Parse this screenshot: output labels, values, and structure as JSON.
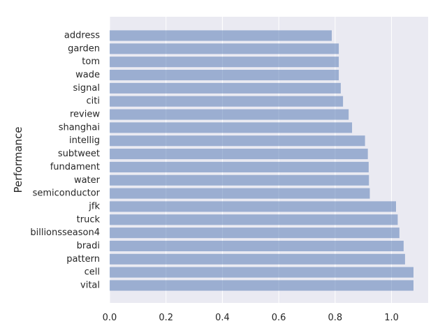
{
  "chart_data": {
    "type": "bar",
    "orientation": "horizontal",
    "categories": [
      "address",
      "garden",
      "tom",
      "wade",
      "signal",
      "citi",
      "review",
      "shanghai",
      "intellig",
      "subtweet",
      "fundament",
      "water",
      "semiconductor",
      "jfk",
      "truck",
      "billionsseason4",
      "bradi",
      "pattern",
      "cell",
      "vital"
    ],
    "values": [
      0.788,
      0.813,
      0.813,
      0.813,
      0.82,
      0.828,
      0.848,
      0.86,
      0.906,
      0.916,
      0.919,
      0.92,
      0.923,
      1.016,
      1.022,
      1.028,
      1.043,
      1.048,
      1.078,
      1.078
    ],
    "ylabel": "Performance",
    "xlabel": "",
    "xlim": [
      0,
      1.13
    ],
    "xticks": [
      0.0,
      0.2,
      0.4,
      0.6,
      0.8,
      1.0
    ],
    "xtick_labels": [
      "0.0",
      "0.2",
      "0.4",
      "0.6",
      "0.8",
      "1.0"
    ],
    "grid": true,
    "bar_color": "#4c72b0",
    "bar_alpha": 0.5,
    "background_color": "#eaeaf2"
  }
}
